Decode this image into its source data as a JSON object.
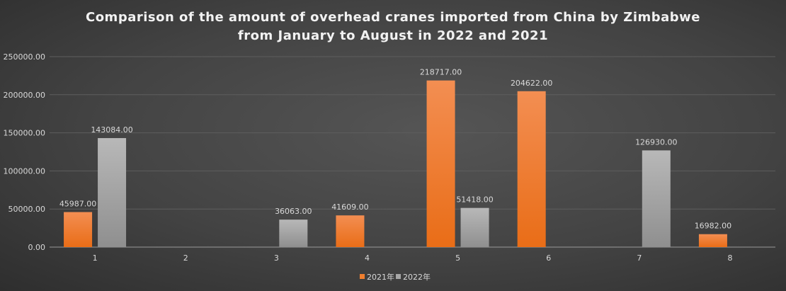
{
  "chart_data": {
    "type": "bar",
    "title_line1": "Comparison of the amount of overhead cranes imported from China by Zimbabwe",
    "title_line2": "from January to August in 2022 and 2021",
    "categories": [
      "1",
      "2",
      "3",
      "4",
      "5",
      "6",
      "7",
      "8"
    ],
    "series": [
      {
        "name": "2021年",
        "color": "#f07f2f",
        "values": [
          45987,
          null,
          null,
          41609,
          218717,
          204622,
          null,
          16982
        ]
      },
      {
        "name": "2022年",
        "color": "#a6a6a6",
        "values": [
          143084,
          null,
          36063,
          null,
          51418,
          null,
          126930,
          null
        ]
      }
    ],
    "yticks": [
      "0.00",
      "50000.00",
      "100000.00",
      "150000.00",
      "200000.00",
      "250000.00"
    ],
    "ylim": [
      0,
      250000
    ],
    "grid": true,
    "legend": "bottom",
    "label_format": "2 decimals"
  }
}
